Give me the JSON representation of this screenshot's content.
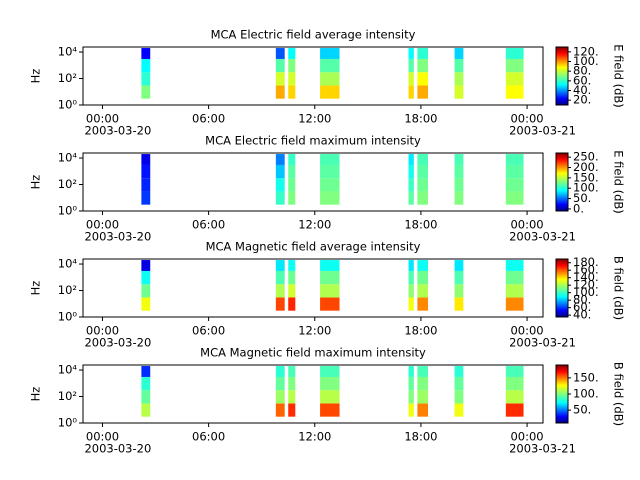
{
  "chart_data": [
    {
      "type": "spectrogram",
      "title": "MCA  Electric field average intensity",
      "ylabel": "Hz",
      "log": true,
      "colormap": "jet",
      "ylim": [
        1,
        24000
      ],
      "yticks": [
        {
          "value": 1,
          "label": "10⁰"
        },
        {
          "value": 100,
          "label": "10²"
        },
        {
          "value": 10000,
          "label": "10⁴"
        }
      ],
      "xlim": [
        -1.1,
        24.9
      ],
      "xticks": [
        {
          "value": 0,
          "label": "00:00",
          "date": "2003-03-20"
        },
        {
          "value": 6,
          "label": "06:00"
        },
        {
          "value": 12,
          "label": "12:00"
        },
        {
          "value": 18,
          "label": "18:00"
        },
        {
          "value": 24,
          "label": "00:00",
          "date": "2003-03-21"
        }
      ],
      "segments": [
        [
          2.2,
          2.7
        ],
        [
          9.8,
          10.3
        ],
        [
          10.5,
          10.9
        ],
        [
          12.3,
          13.4
        ],
        [
          17.3,
          17.6
        ],
        [
          17.8,
          18.4
        ],
        [
          19.9,
          20.4
        ],
        [
          22.8,
          23.8
        ]
      ],
      "bands": [
        3,
        30,
        300,
        3000,
        20000
      ],
      "values": [
        [
          70,
          60,
          55,
          25
        ],
        [
          95,
          80,
          65,
          35
        ],
        [
          90,
          80,
          70,
          55
        ],
        [
          90,
          75,
          65,
          50
        ],
        [
          90,
          80,
          65,
          55
        ],
        [
          95,
          85,
          70,
          60
        ],
        [
          80,
          75,
          65,
          50
        ],
        [
          85,
          80,
          70,
          60
        ]
      ],
      "zlabel": "E field (dB)",
      "zlim": [
        10,
        130
      ],
      "zticks": [
        {
          "value": 20,
          "label": "20."
        },
        {
          "value": 40,
          "label": "40."
        },
        {
          "value": 60,
          "label": "60."
        },
        {
          "value": 80,
          "label": "80."
        },
        {
          "value": 100,
          "label": "100."
        },
        {
          "value": 120,
          "label": "120."
        }
      ]
    },
    {
      "type": "spectrogram",
      "title": "MCA  Electric field maximum intensity",
      "ylabel": "Hz",
      "log": true,
      "colormap": "jet",
      "ylim": [
        1,
        24000
      ],
      "yticks": [
        {
          "value": 1,
          "label": "10⁰"
        },
        {
          "value": 100,
          "label": "10²"
        },
        {
          "value": 10000,
          "label": "10⁴"
        }
      ],
      "xlim": [
        -1.1,
        24.9
      ],
      "xticks": [
        {
          "value": 0,
          "label": "00:00",
          "date": "2003-03-20"
        },
        {
          "value": 6,
          "label": "06:00"
        },
        {
          "value": 12,
          "label": "12:00"
        },
        {
          "value": 18,
          "label": "18:00"
        },
        {
          "value": 24,
          "label": "00:00",
          "date": "2003-03-21"
        }
      ],
      "segments": [
        [
          2.2,
          2.7
        ],
        [
          9.8,
          10.3
        ],
        [
          10.5,
          10.9
        ],
        [
          12.3,
          13.4
        ],
        [
          17.3,
          17.6
        ],
        [
          17.8,
          18.4
        ],
        [
          19.9,
          20.4
        ],
        [
          22.8,
          23.8
        ]
      ],
      "bands": [
        3,
        30,
        300,
        3000,
        20000
      ],
      "values": [
        [
          40,
          35,
          30,
          20
        ],
        [
          110,
          100,
          80,
          60
        ],
        [
          130,
          125,
          120,
          110
        ],
        [
          130,
          125,
          120,
          115
        ],
        [
          120,
          110,
          100,
          90
        ],
        [
          130,
          125,
          120,
          115
        ],
        [
          130,
          125,
          120,
          115
        ],
        [
          130,
          125,
          120,
          115
        ]
      ],
      "zlabel": "E field (dB)",
      "zlim": [
        -10,
        270
      ],
      "zticks": [
        {
          "value": 0,
          "label": "0."
        },
        {
          "value": 50,
          "label": "50."
        },
        {
          "value": 100,
          "label": "100."
        },
        {
          "value": 150,
          "label": "150."
        },
        {
          "value": 200,
          "label": "200."
        },
        {
          "value": 250,
          "label": "250."
        }
      ]
    },
    {
      "type": "spectrogram",
      "title": "MCA  Magnetic field average intensity",
      "ylabel": "Hz",
      "log": true,
      "colormap": "jet",
      "ylim": [
        1,
        24000
      ],
      "yticks": [
        {
          "value": 1,
          "label": "10⁰"
        },
        {
          "value": 100,
          "label": "10²"
        },
        {
          "value": 10000,
          "label": "10⁴"
        }
      ],
      "xlim": [
        -1.1,
        24.9
      ],
      "xticks": [
        {
          "value": 0,
          "label": "00:00",
          "date": "2003-03-20"
        },
        {
          "value": 6,
          "label": "06:00"
        },
        {
          "value": 12,
          "label": "12:00"
        },
        {
          "value": 18,
          "label": "18:00"
        },
        {
          "value": 24,
          "label": "00:00",
          "date": "2003-03-21"
        }
      ],
      "segments": [
        [
          2.2,
          2.7
        ],
        [
          9.8,
          10.3
        ],
        [
          10.5,
          10.9
        ],
        [
          12.3,
          13.4
        ],
        [
          17.3,
          17.6
        ],
        [
          17.8,
          18.4
        ],
        [
          19.9,
          20.4
        ],
        [
          22.8,
          23.8
        ]
      ],
      "bands": [
        3,
        30,
        300,
        3000,
        20000
      ],
      "values": [
        [
          130,
          110,
          95,
          50
        ],
        [
          160,
          120,
          105,
          90
        ],
        [
          165,
          125,
          110,
          95
        ],
        [
          160,
          120,
          110,
          95
        ],
        [
          130,
          115,
          105,
          90
        ],
        [
          150,
          120,
          110,
          95
        ],
        [
          135,
          115,
          105,
          90
        ],
        [
          150,
          120,
          110,
          95
        ]
      ],
      "zlabel": "B field (dB)",
      "zlim": [
        35,
        190
      ],
      "zticks": [
        {
          "value": 40,
          "label": "40."
        },
        {
          "value": 60,
          "label": "60."
        },
        {
          "value": 80,
          "label": "80."
        },
        {
          "value": 100,
          "label": "100."
        },
        {
          "value": 120,
          "label": "120."
        },
        {
          "value": 140,
          "label": "140."
        },
        {
          "value": 160,
          "label": "160."
        },
        {
          "value": 180,
          "label": "180."
        }
      ]
    },
    {
      "type": "spectrogram",
      "title": "MCA  Magnetic field maximum intensity",
      "ylabel": "Hz",
      "log": true,
      "colormap": "jet",
      "ylim": [
        1,
        24000
      ],
      "yticks": [
        {
          "value": 1,
          "label": "10⁰"
        },
        {
          "value": 100,
          "label": "10²"
        },
        {
          "value": 10000,
          "label": "10⁴"
        }
      ],
      "xlim": [
        -1.1,
        24.9
      ],
      "xticks": [
        {
          "value": 0,
          "label": "00:00",
          "date": "2003-03-20"
        },
        {
          "value": 6,
          "label": "06:00"
        },
        {
          "value": 12,
          "label": "12:00"
        },
        {
          "value": 18,
          "label": "18:00"
        },
        {
          "value": 24,
          "label": "00:00",
          "date": "2003-03-21"
        }
      ],
      "segments": [
        [
          2.2,
          2.7
        ],
        [
          9.8,
          10.3
        ],
        [
          10.5,
          10.9
        ],
        [
          12.3,
          13.4
        ],
        [
          17.3,
          17.6
        ],
        [
          17.8,
          18.4
        ],
        [
          19.9,
          20.4
        ],
        [
          22.8,
          23.8
        ]
      ],
      "bands": [
        3,
        30,
        300,
        3000,
        20000
      ],
      "values": [
        [
          110,
          95,
          85,
          40
        ],
        [
          150,
          105,
          95,
          85
        ],
        [
          160,
          110,
          100,
          90
        ],
        [
          155,
          110,
          100,
          90
        ],
        [
          120,
          100,
          95,
          85
        ],
        [
          145,
          105,
          100,
          90
        ],
        [
          120,
          100,
          95,
          85
        ],
        [
          160,
          110,
          100,
          90
        ]
      ],
      "zlabel": "B field (dB)",
      "zlim": [
        10,
        190
      ],
      "zticks": [
        {
          "value": 50,
          "label": "50."
        },
        {
          "value": 100,
          "label": "100."
        },
        {
          "value": 150,
          "label": "150."
        }
      ]
    }
  ]
}
